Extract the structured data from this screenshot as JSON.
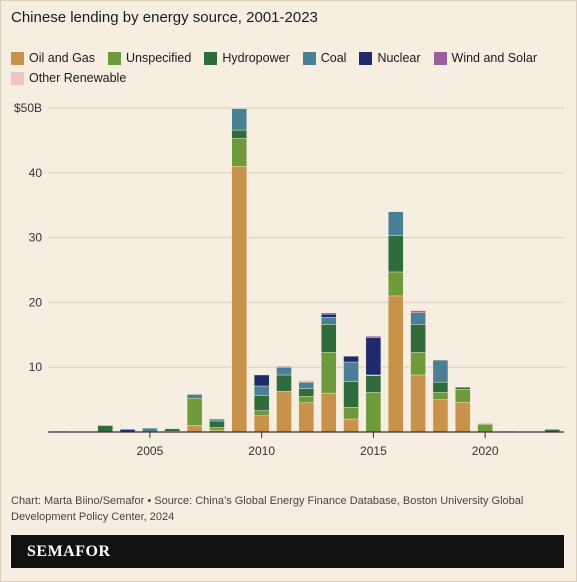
{
  "title": "Chinese lending by energy source, 2001-2023",
  "footer": {
    "source": "Chart: Marta Biino/Semafor • Source: China’s Global Energy Finance Database, Boston University Global Development Policy Center, 2024",
    "brand": "SEMAFOR"
  },
  "chart_data": {
    "type": "bar",
    "stacked": true,
    "title": "Chinese lending by energy source, 2001-2023",
    "xlabel": "",
    "ylabel": "",
    "ylim": [
      0,
      50
    ],
    "yticks": [
      0,
      10,
      20,
      30,
      40,
      50
    ],
    "ytick_labels": [
      "",
      "10",
      "20",
      "30",
      "40",
      "$50B"
    ],
    "xticks": [
      2005,
      2010,
      2015,
      2020
    ],
    "xtick_labels": [
      "2005",
      "2010",
      "2015",
      "2020"
    ],
    "grid": true,
    "legend_position": "top",
    "categories": [
      2001,
      2002,
      2003,
      2004,
      2005,
      2006,
      2007,
      2008,
      2009,
      2010,
      2011,
      2012,
      2013,
      2014,
      2015,
      2016,
      2017,
      2018,
      2019,
      2020,
      2021,
      2022,
      2023
    ],
    "series": [
      {
        "name": "Oil and Gas",
        "color": "#c8924a",
        "values": [
          0,
          0,
          0,
          0,
          0,
          0,
          1.0,
          0.3,
          41.0,
          2.5,
          6.3,
          4.5,
          6.0,
          2.0,
          0,
          21.0,
          8.8,
          5.0,
          4.6,
          0,
          0,
          0,
          0
        ]
      },
      {
        "name": "Unspecified",
        "color": "#6f9a3c",
        "values": [
          0,
          0,
          0,
          0,
          0,
          0.1,
          4.2,
          0.4,
          4.3,
          0.8,
          0,
          1.0,
          6.3,
          1.8,
          6.1,
          3.7,
          3.5,
          1.1,
          2.0,
          1.2,
          0,
          0,
          0
        ]
      },
      {
        "name": "Hydropower",
        "color": "#2f6b3b",
        "values": [
          0.1,
          0,
          1.0,
          0,
          0,
          0.4,
          0,
          1.0,
          1.3,
          2.3,
          2.5,
          1.2,
          4.3,
          4.0,
          2.6,
          5.6,
          4.3,
          1.6,
          0.3,
          0.1,
          0.1,
          0,
          0.4
        ]
      },
      {
        "name": "Coal",
        "color": "#4a7f96",
        "values": [
          0,
          0,
          0,
          0,
          0.6,
          0,
          0.6,
          0.3,
          3.3,
          1.5,
          1.2,
          1.0,
          1.1,
          3.0,
          0.1,
          3.7,
          1.8,
          3.4,
          0,
          0,
          0,
          0,
          0
        ]
      },
      {
        "name": "Nuclear",
        "color": "#1f2a6b",
        "values": [
          0,
          0,
          0,
          0.4,
          0,
          0,
          0,
          0,
          0,
          1.7,
          0.1,
          0,
          0.5,
          0.9,
          5.8,
          0,
          0,
          0,
          0,
          0,
          0,
          0,
          0
        ]
      },
      {
        "name": "Wind and Solar",
        "color": "#9a5f9c",
        "values": [
          0,
          0,
          0,
          0,
          0,
          0,
          0,
          0,
          0,
          0,
          0,
          0,
          0.2,
          0,
          0.2,
          0,
          0.3,
          0,
          0,
          0,
          0,
          0,
          0
        ]
      },
      {
        "name": "Other Renewable",
        "color": "#f3c3c3",
        "values": [
          0,
          0,
          0,
          0,
          0,
          0,
          0,
          0,
          0,
          0,
          0,
          0.3,
          0,
          0,
          0,
          0,
          0.2,
          0,
          0,
          0,
          0,
          0,
          0
        ]
      }
    ]
  }
}
